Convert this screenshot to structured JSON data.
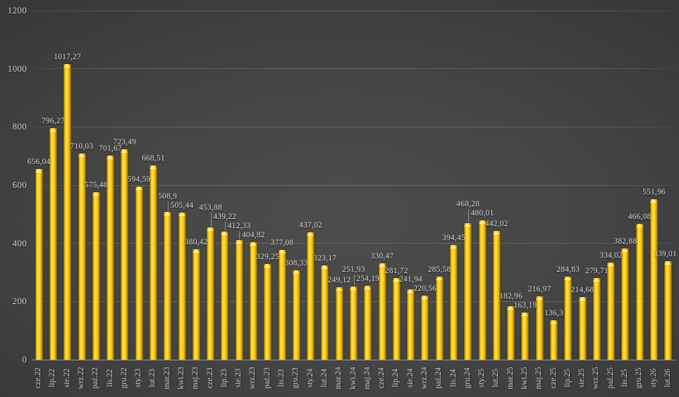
{
  "chart_data": {
    "type": "bar",
    "title": "",
    "xlabel": "",
    "ylabel": "",
    "legend": "none",
    "grid": "horizontal",
    "ylim": [
      0,
      1200
    ],
    "yticks": [
      0,
      200,
      400,
      600,
      800,
      1000,
      1200
    ],
    "ytick_labels": [
      "0",
      "200",
      "400",
      "600",
      "800",
      "1000",
      "1200"
    ],
    "categories": [
      "cze.22",
      "lip.22",
      "sie.22",
      "wrz.22",
      "paź.22",
      "lis.22",
      "gru.22",
      "sty.23",
      "lut.23",
      "mar.23",
      "kwi.23",
      "maj.23",
      "cze.23",
      "lip.23",
      "sie.23",
      "wrz.23",
      "paź.23",
      "lis.23",
      "gru.23",
      "sty.24",
      "lut.24",
      "mar.24",
      "kwi.24",
      "maj.24",
      "cze.24",
      "lip.24",
      "sie.24",
      "wrz.24",
      "paź.24",
      "lis.24",
      "gru.24",
      "sty.25",
      "lut.25",
      "mar.25",
      "kwi.25",
      "maj.25",
      "cze.25",
      "lip.25",
      "sie.25",
      "wrz.25",
      "paź.25",
      "lis.25",
      "gru.25",
      "sty.26",
      "lut.26"
    ],
    "values": [
      656.04,
      796.27,
      1017.27,
      710.03,
      575.48,
      701.67,
      723.49,
      594.59,
      668.51,
      508.9,
      505.44,
      380.42,
      453.88,
      439.22,
      412.33,
      404.82,
      329.25,
      377.08,
      308.33,
      437.02,
      323.17,
      249.12,
      251.93,
      254.19,
      330.47,
      281.72,
      241.94,
      220.56,
      285.58,
      394.45,
      468.28,
      480.01,
      442.02,
      182.96,
      163.19,
      216.97,
      136.3,
      284.83,
      214.68,
      279.71,
      334.02,
      382.88,
      466.08,
      551.96,
      339.01
    ],
    "value_labels": [
      "656,04",
      "796,27",
      "1017,27",
      "710,03",
      "575,48",
      "701,67",
      "723,49",
      "594,59",
      "668,51",
      "508,9",
      "505,44",
      "380,42",
      "453,88",
      "439,22",
      "412,33",
      "404,82",
      "329,25",
      "377,08",
      "308,33",
      "437,02",
      "323,17",
      "249,12",
      "251,93",
      "254,19",
      "330,47",
      "281,72",
      "241,94",
      "220,56",
      "285,58",
      "394,45",
      "468,28",
      "480,01",
      "442,02",
      "182,96",
      "163,19",
      "216,97",
      "136,3",
      "284,83",
      "214,68",
      "279,71",
      "334,02",
      "382,88",
      "466,08",
      "551,96",
      "339,01"
    ],
    "colors": {
      "bar_main": "#FFD21C",
      "bar_highlight": "#FFE158",
      "bar_edge": "#5E4700",
      "bar_cap": "#FFEC96",
      "background_center": "#4D4D4D",
      "background_edge": "#1E1E1E",
      "gridline": "#5A5A5A",
      "axis_line": "#A0A0A0",
      "text": "#D6D6D6"
    }
  }
}
